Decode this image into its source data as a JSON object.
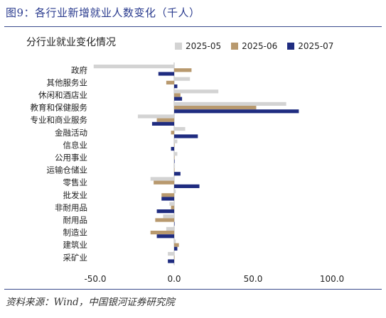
{
  "figure_title": "图9：各行业新增就业人数变化（千人）",
  "source_note": "资料来源：Wind，中国银河证券研究院",
  "colors": {
    "rule": "#3a4a8c",
    "title": "#2b3c8f"
  },
  "chart_data": {
    "type": "bar",
    "orientation": "horizontal",
    "title": "分行业就业变化情况",
    "categories": [
      "政府",
      "其他服务业",
      "休闲和酒店业",
      "教育和保健服务",
      "专业和商业服务",
      "金融活动",
      "信息业",
      "公用事业",
      "运输仓储业",
      "零售业",
      "批发业",
      "非耐用品",
      "耐用品",
      "制造业",
      "建筑业",
      "采矿业"
    ],
    "series": [
      {
        "name": "2025-05",
        "color": "#d3d3d3",
        "values": [
          -51,
          10,
          28,
          71,
          -23,
          7,
          2,
          2,
          0.5,
          -15,
          1,
          -3,
          -7,
          -5,
          1,
          -4
        ]
      },
      {
        "name": "2025-06",
        "color": "#b8996e",
        "values": [
          11,
          -5,
          4,
          52,
          -11,
          -2,
          0,
          0,
          0,
          -13,
          -8,
          -2,
          -12,
          -15,
          3,
          0
        ]
      },
      {
        "name": "2025-07",
        "color": "#1f2c80",
        "values": [
          -10,
          2,
          5,
          79,
          -14,
          15,
          -2,
          0,
          4,
          16,
          -8,
          -11,
          0,
          -11,
          2,
          -4
        ]
      }
    ],
    "xlim": [
      -50,
      100
    ],
    "xticks": [
      "-50.0",
      "0.0",
      "50.0",
      "100.0"
    ],
    "xtick_values": [
      -50,
      0,
      50,
      100
    ],
    "legend_position": "top",
    "grid": false
  }
}
